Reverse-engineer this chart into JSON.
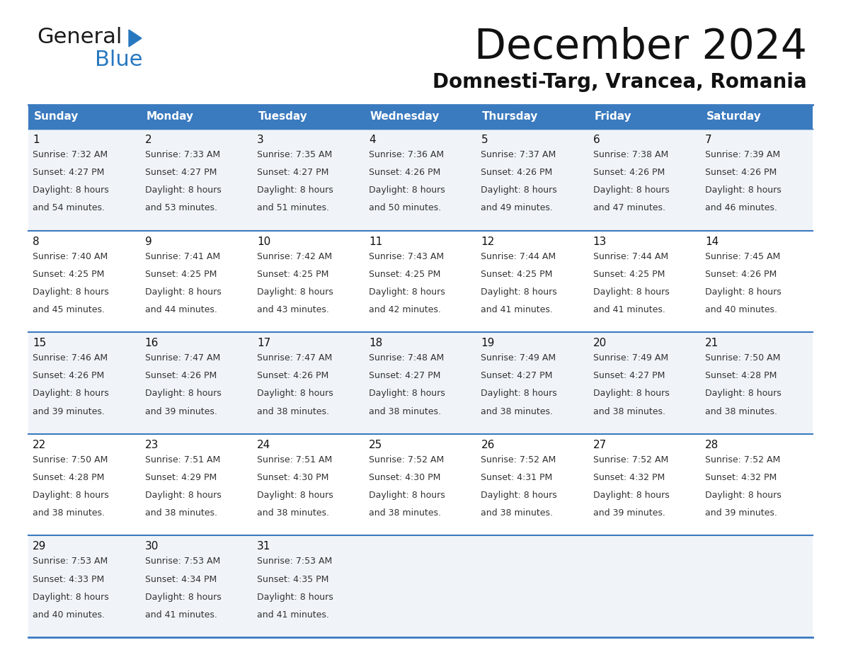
{
  "title": "December 2024",
  "subtitle": "Domnesti-Targ, Vrancea, Romania",
  "header_color": "#3a7abf",
  "header_text_color": "#ffffff",
  "cell_bg_odd": "#f0f4f8",
  "cell_bg_even": "#ffffff",
  "border_color": "#3a7abf",
  "text_color": "#333333",
  "day_num_color": "#111111",
  "day_headers": [
    "Sunday",
    "Monday",
    "Tuesday",
    "Wednesday",
    "Thursday",
    "Friday",
    "Saturday"
  ],
  "weeks": [
    [
      {
        "day": 1,
        "sunrise": "7:32 AM",
        "sunset": "4:27 PM",
        "daylight": "8 hours and 54 minutes."
      },
      {
        "day": 2,
        "sunrise": "7:33 AM",
        "sunset": "4:27 PM",
        "daylight": "8 hours and 53 minutes."
      },
      {
        "day": 3,
        "sunrise": "7:35 AM",
        "sunset": "4:27 PM",
        "daylight": "8 hours and 51 minutes."
      },
      {
        "day": 4,
        "sunrise": "7:36 AM",
        "sunset": "4:26 PM",
        "daylight": "8 hours and 50 minutes."
      },
      {
        "day": 5,
        "sunrise": "7:37 AM",
        "sunset": "4:26 PM",
        "daylight": "8 hours and 49 minutes."
      },
      {
        "day": 6,
        "sunrise": "7:38 AM",
        "sunset": "4:26 PM",
        "daylight": "8 hours and 47 minutes."
      },
      {
        "day": 7,
        "sunrise": "7:39 AM",
        "sunset": "4:26 PM",
        "daylight": "8 hours and 46 minutes."
      }
    ],
    [
      {
        "day": 8,
        "sunrise": "7:40 AM",
        "sunset": "4:25 PM",
        "daylight": "8 hours and 45 minutes."
      },
      {
        "day": 9,
        "sunrise": "7:41 AM",
        "sunset": "4:25 PM",
        "daylight": "8 hours and 44 minutes."
      },
      {
        "day": 10,
        "sunrise": "7:42 AM",
        "sunset": "4:25 PM",
        "daylight": "8 hours and 43 minutes."
      },
      {
        "day": 11,
        "sunrise": "7:43 AM",
        "sunset": "4:25 PM",
        "daylight": "8 hours and 42 minutes."
      },
      {
        "day": 12,
        "sunrise": "7:44 AM",
        "sunset": "4:25 PM",
        "daylight": "8 hours and 41 minutes."
      },
      {
        "day": 13,
        "sunrise": "7:44 AM",
        "sunset": "4:25 PM",
        "daylight": "8 hours and 41 minutes."
      },
      {
        "day": 14,
        "sunrise": "7:45 AM",
        "sunset": "4:26 PM",
        "daylight": "8 hours and 40 minutes."
      }
    ],
    [
      {
        "day": 15,
        "sunrise": "7:46 AM",
        "sunset": "4:26 PM",
        "daylight": "8 hours and 39 minutes."
      },
      {
        "day": 16,
        "sunrise": "7:47 AM",
        "sunset": "4:26 PM",
        "daylight": "8 hours and 39 minutes."
      },
      {
        "day": 17,
        "sunrise": "7:47 AM",
        "sunset": "4:26 PM",
        "daylight": "8 hours and 38 minutes."
      },
      {
        "day": 18,
        "sunrise": "7:48 AM",
        "sunset": "4:27 PM",
        "daylight": "8 hours and 38 minutes."
      },
      {
        "day": 19,
        "sunrise": "7:49 AM",
        "sunset": "4:27 PM",
        "daylight": "8 hours and 38 minutes."
      },
      {
        "day": 20,
        "sunrise": "7:49 AM",
        "sunset": "4:27 PM",
        "daylight": "8 hours and 38 minutes."
      },
      {
        "day": 21,
        "sunrise": "7:50 AM",
        "sunset": "4:28 PM",
        "daylight": "8 hours and 38 minutes."
      }
    ],
    [
      {
        "day": 22,
        "sunrise": "7:50 AM",
        "sunset": "4:28 PM",
        "daylight": "8 hours and 38 minutes."
      },
      {
        "day": 23,
        "sunrise": "7:51 AM",
        "sunset": "4:29 PM",
        "daylight": "8 hours and 38 minutes."
      },
      {
        "day": 24,
        "sunrise": "7:51 AM",
        "sunset": "4:30 PM",
        "daylight": "8 hours and 38 minutes."
      },
      {
        "day": 25,
        "sunrise": "7:52 AM",
        "sunset": "4:30 PM",
        "daylight": "8 hours and 38 minutes."
      },
      {
        "day": 26,
        "sunrise": "7:52 AM",
        "sunset": "4:31 PM",
        "daylight": "8 hours and 38 minutes."
      },
      {
        "day": 27,
        "sunrise": "7:52 AM",
        "sunset": "4:32 PM",
        "daylight": "8 hours and 39 minutes."
      },
      {
        "day": 28,
        "sunrise": "7:52 AM",
        "sunset": "4:32 PM",
        "daylight": "8 hours and 39 minutes."
      }
    ],
    [
      {
        "day": 29,
        "sunrise": "7:53 AM",
        "sunset": "4:33 PM",
        "daylight": "8 hours and 40 minutes."
      },
      {
        "day": 30,
        "sunrise": "7:53 AM",
        "sunset": "4:34 PM",
        "daylight": "8 hours and 41 minutes."
      },
      {
        "day": 31,
        "sunrise": "7:53 AM",
        "sunset": "4:35 PM",
        "daylight": "8 hours and 41 minutes."
      },
      null,
      null,
      null,
      null
    ]
  ],
  "logo_general_color": "#1a1a1a",
  "logo_blue_color": "#2878c0",
  "logo_triangle_color": "#2878c0",
  "title_fontsize": 42,
  "subtitle_fontsize": 20,
  "header_fontsize": 11,
  "day_num_fontsize": 11,
  "cell_fontsize": 9
}
